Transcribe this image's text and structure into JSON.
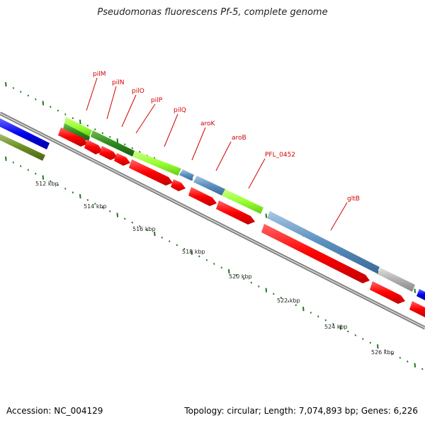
{
  "title": "Pseudomonas fluorescens Pf-5, complete genome",
  "footer": {
    "accession": "Accession: NC_004129",
    "summary": "Topology: circular; Length: 7,074,893 bp; Genes: 6,226"
  },
  "colors": {
    "backbone": "#7f7f7f",
    "forward_cds": "#ff0000",
    "pilus_genes": "#99ff33",
    "pilus_dark": "#2d8a1e",
    "metabolic_genes": "#5b8fbf",
    "other_gene": "#b0b0b0",
    "blue_block": "#0000ee",
    "olive_block": "#6b8e23",
    "labels": "#d40000",
    "ticks": "#1a7a1a"
  },
  "kbp_ticks": [
    "512 kbp",
    "514 kbp",
    "516 kbp",
    "518 kbp",
    "520 kbp",
    "522 kbp",
    "524 kbp",
    "526 kbp"
  ],
  "genes": [
    {
      "label": "pilM"
    },
    {
      "label": "pilN"
    },
    {
      "label": "pilO"
    },
    {
      "label": "pilP"
    },
    {
      "label": "pilQ"
    },
    {
      "label": "aroK"
    },
    {
      "label": "aroB"
    },
    {
      "label": "PFL_0452"
    },
    {
      "label": "gltB"
    }
  ]
}
